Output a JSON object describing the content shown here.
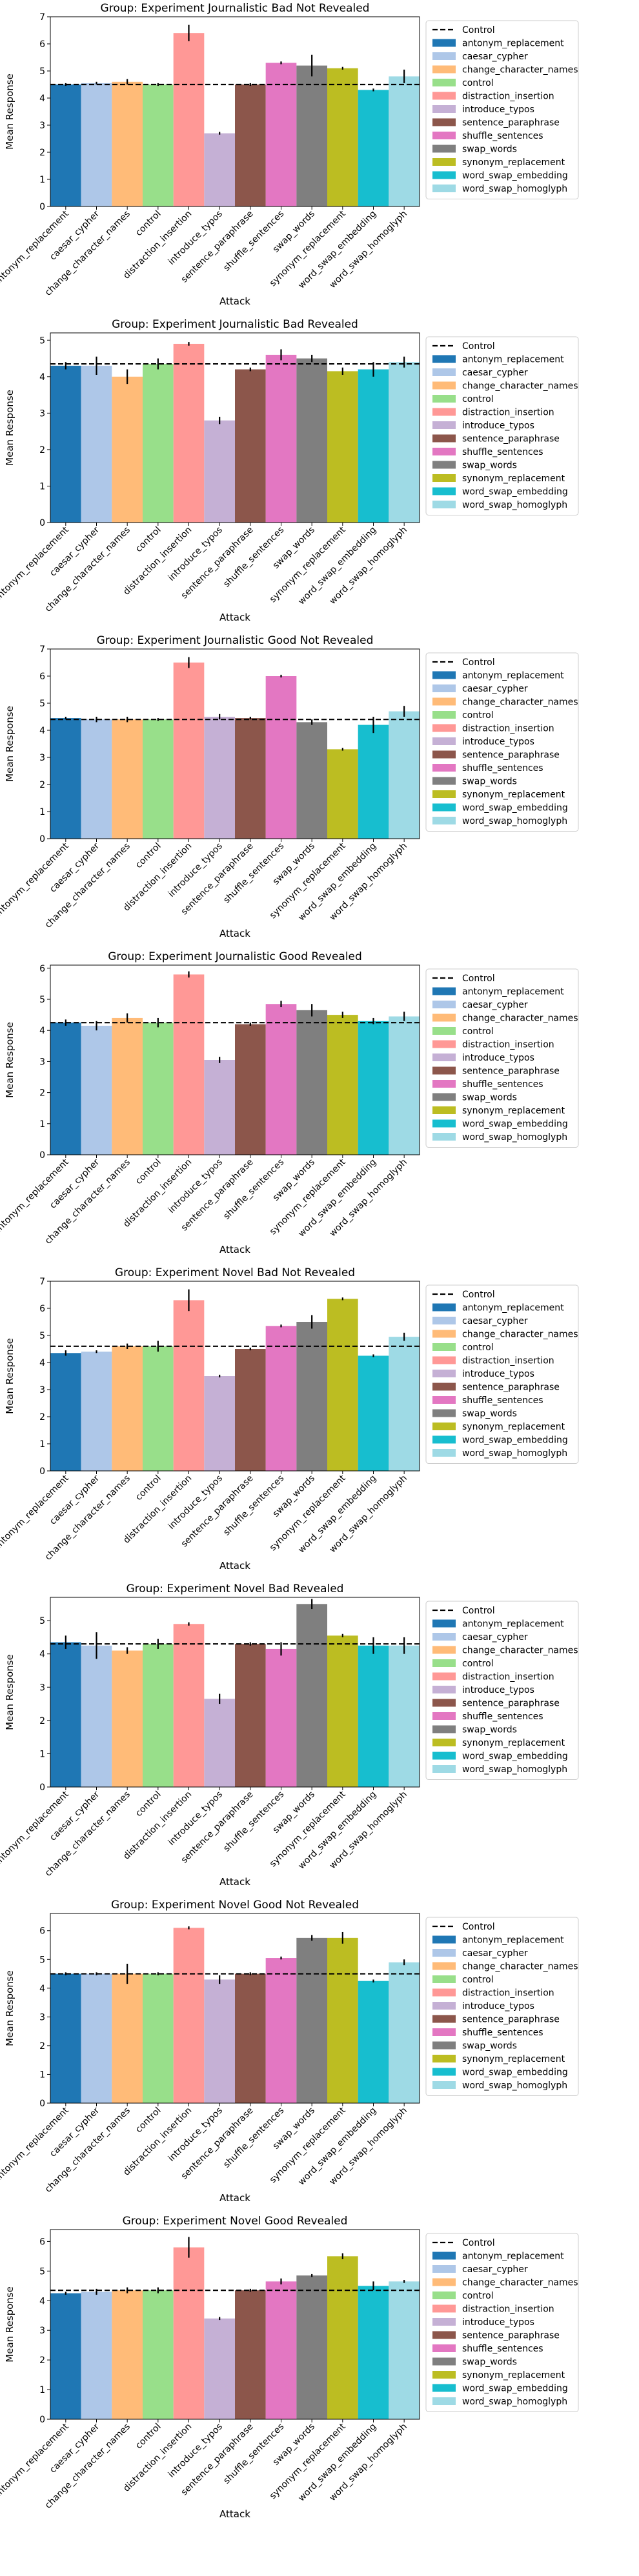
{
  "colors": {
    "antonym_replacement": "#1f77b4",
    "caesar_cypher": "#aec7e8",
    "change_character_names": "#ffbb78",
    "control": "#98df8a",
    "distraction_insertion": "#ff9896",
    "introduce_typos": "#c5b0d5",
    "sentence_paraphrase": "#8c564b",
    "shuffle_sentences": "#e377c2",
    "swap_words": "#7f7f7f",
    "synonym_replacement": "#bcbd22",
    "word_swap_embedding": "#17becf",
    "word_swap_homoglyph": "#9edae5"
  },
  "legend": {
    "control_line": "Control",
    "placement": "outside-right"
  },
  "chart_data": [
    {
      "type": "bar",
      "title": "Group: Experiment Journalistic Bad Not Revealed",
      "xlabel": "Attack",
      "ylabel": "Mean Response",
      "ylim": [
        0,
        7
      ],
      "yticks": [
        0,
        1,
        2,
        3,
        4,
        5,
        6,
        7
      ],
      "categories": [
        "antonym_replacement",
        "caesar_cypher",
        "change_character_names",
        "control",
        "distraction_insertion",
        "introduce_typos",
        "sentence_paraphrase",
        "shuffle_sentences",
        "swap_words",
        "synonym_replacement",
        "word_swap_embedding",
        "word_swap_homoglyph"
      ],
      "values": [
        4.5,
        4.55,
        4.6,
        4.5,
        6.4,
        2.7,
        4.5,
        5.3,
        5.2,
        5.1,
        4.3,
        4.8
      ],
      "errors": [
        0.05,
        0.05,
        0.1,
        0.05,
        0.3,
        0.05,
        0.05,
        0.05,
        0.4,
        0.05,
        0.05,
        0.25
      ],
      "control_line": 4.5
    },
    {
      "type": "bar",
      "title": "Group: Experiment Journalistic Bad Revealed",
      "xlabel": "Attack",
      "ylabel": "Mean Response",
      "ylim": [
        0,
        5.2
      ],
      "yticks": [
        0,
        1,
        2,
        3,
        4,
        5
      ],
      "categories": [
        "antonym_replacement",
        "caesar_cypher",
        "change_character_names",
        "control",
        "distraction_insertion",
        "introduce_typos",
        "sentence_paraphrase",
        "shuffle_sentences",
        "swap_words",
        "synonym_replacement",
        "word_swap_embedding",
        "word_swap_homoglyph"
      ],
      "values": [
        4.3,
        4.3,
        4.0,
        4.35,
        4.9,
        2.8,
        4.2,
        4.6,
        4.5,
        4.15,
        4.2,
        4.4
      ],
      "errors": [
        0.1,
        0.25,
        0.2,
        0.15,
        0.05,
        0.1,
        0.05,
        0.15,
        0.1,
        0.1,
        0.2,
        0.15
      ],
      "control_line": 4.35
    },
    {
      "type": "bar",
      "title": "Group: Experiment Journalistic Good Not Revealed",
      "xlabel": "Attack",
      "ylabel": "Mean Response",
      "ylim": [
        0,
        7
      ],
      "yticks": [
        0,
        1,
        2,
        3,
        4,
        5,
        6,
        7
      ],
      "categories": [
        "antonym_replacement",
        "caesar_cypher",
        "change_character_names",
        "control",
        "distraction_insertion",
        "introduce_typos",
        "sentence_paraphrase",
        "shuffle_sentences",
        "swap_words",
        "synonym_replacement",
        "word_swap_embedding",
        "word_swap_homoglyph"
      ],
      "values": [
        4.45,
        4.4,
        4.4,
        4.4,
        6.5,
        4.5,
        4.45,
        6.0,
        4.3,
        3.3,
        4.2,
        4.7
      ],
      "errors": [
        0.05,
        0.1,
        0.1,
        0.05,
        0.2,
        0.1,
        0.05,
        0.05,
        0.1,
        0.05,
        0.3,
        0.2
      ],
      "control_line": 4.4
    },
    {
      "type": "bar",
      "title": "Group: Experiment Journalistic Good Revealed",
      "xlabel": "Attack",
      "ylabel": "Mean Response",
      "ylim": [
        0,
        6.1
      ],
      "yticks": [
        0,
        1,
        2,
        3,
        4,
        5,
        6
      ],
      "categories": [
        "antonym_replacement",
        "caesar_cypher",
        "change_character_names",
        "control",
        "distraction_insertion",
        "introduce_typos",
        "sentence_paraphrase",
        "shuffle_sentences",
        "swap_words",
        "synonym_replacement",
        "word_swap_embedding",
        "word_swap_homoglyph"
      ],
      "values": [
        4.25,
        4.15,
        4.4,
        4.25,
        5.8,
        3.05,
        4.2,
        4.85,
        4.65,
        4.5,
        4.3,
        4.45
      ],
      "errors": [
        0.1,
        0.15,
        0.15,
        0.15,
        0.1,
        0.1,
        0.05,
        0.1,
        0.2,
        0.1,
        0.1,
        0.15
      ],
      "control_line": 4.25
    },
    {
      "type": "bar",
      "title": "Group: Experiment Novel Bad Not Revealed",
      "xlabel": "Attack",
      "ylabel": "Mean Response",
      "ylim": [
        0,
        7
      ],
      "yticks": [
        0,
        1,
        2,
        3,
        4,
        5,
        6,
        7
      ],
      "categories": [
        "antonym_replacement",
        "caesar_cypher",
        "change_character_names",
        "control",
        "distraction_insertion",
        "introduce_typos",
        "sentence_paraphrase",
        "shuffle_sentences",
        "swap_words",
        "synonym_replacement",
        "word_swap_embedding",
        "word_swap_homoglyph"
      ],
      "values": [
        4.35,
        4.4,
        4.6,
        4.6,
        6.3,
        3.5,
        4.5,
        5.35,
        5.5,
        6.35,
        4.25,
        4.95
      ],
      "errors": [
        0.1,
        0.05,
        0.1,
        0.2,
        0.4,
        0.05,
        0.05,
        0.05,
        0.25,
        0.05,
        0.05,
        0.15
      ],
      "control_line": 4.6
    },
    {
      "type": "bar",
      "title": "Group: Experiment Novel Bad Revealed",
      "xlabel": "Attack",
      "ylabel": "Mean Response",
      "ylim": [
        0,
        5.7
      ],
      "yticks": [
        0,
        1,
        2,
        3,
        4,
        5
      ],
      "categories": [
        "antonym_replacement",
        "caesar_cypher",
        "change_character_names",
        "control",
        "distraction_insertion",
        "introduce_typos",
        "sentence_paraphrase",
        "shuffle_sentences",
        "swap_words",
        "synonym_replacement",
        "word_swap_embedding",
        "word_swap_homoglyph"
      ],
      "values": [
        4.35,
        4.25,
        4.1,
        4.3,
        4.9,
        2.65,
        4.3,
        4.15,
        5.5,
        4.55,
        4.25,
        4.25
      ],
      "errors": [
        0.2,
        0.4,
        0.1,
        0.15,
        0.05,
        0.15,
        0.05,
        0.2,
        0.15,
        0.05,
        0.25,
        0.25
      ],
      "control_line": 4.3
    },
    {
      "type": "bar",
      "title": "Group: Experiment Novel Good Not Revealed",
      "xlabel": "Attack",
      "ylabel": "Mean Response",
      "ylim": [
        0,
        6.6
      ],
      "yticks": [
        0,
        1,
        2,
        3,
        4,
        5,
        6
      ],
      "categories": [
        "antonym_replacement",
        "caesar_cypher",
        "change_character_names",
        "control",
        "distraction_insertion",
        "introduce_typos",
        "sentence_paraphrase",
        "shuffle_sentences",
        "swap_words",
        "synonym_replacement",
        "word_swap_embedding",
        "word_swap_homoglyph"
      ],
      "values": [
        4.5,
        4.5,
        4.5,
        4.5,
        6.1,
        4.3,
        4.5,
        5.05,
        5.75,
        5.75,
        4.25,
        4.9
      ],
      "errors": [
        0.05,
        0.05,
        0.35,
        0.05,
        0.05,
        0.15,
        0.05,
        0.05,
        0.1,
        0.2,
        0.05,
        0.1
      ],
      "control_line": 4.5
    },
    {
      "type": "bar",
      "title": "Group: Experiment Novel Good Revealed",
      "xlabel": "Attack",
      "ylabel": "Mean Response",
      "ylim": [
        0,
        6.4
      ],
      "yticks": [
        0,
        1,
        2,
        3,
        4,
        5,
        6
      ],
      "categories": [
        "antonym_replacement",
        "caesar_cypher",
        "change_character_names",
        "control",
        "distraction_insertion",
        "introduce_typos",
        "sentence_paraphrase",
        "shuffle_sentences",
        "swap_words",
        "synonym_replacement",
        "word_swap_embedding",
        "word_swap_homoglyph"
      ],
      "values": [
        4.25,
        4.3,
        4.35,
        4.35,
        5.8,
        3.4,
        4.35,
        4.65,
        4.85,
        5.5,
        4.5,
        4.65
      ],
      "errors": [
        0.05,
        0.1,
        0.1,
        0.1,
        0.35,
        0.05,
        0.05,
        0.1,
        0.05,
        0.1,
        0.15,
        0.05
      ],
      "control_line": 4.35
    }
  ]
}
